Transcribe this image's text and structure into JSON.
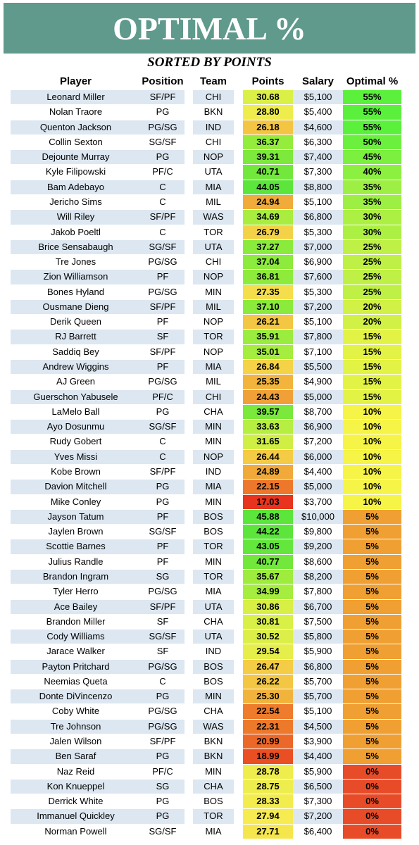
{
  "header": {
    "title": "OPTIMAL %",
    "subtitle": "SORTED BY POINTS"
  },
  "table": {
    "columns": [
      "Player",
      "Position",
      "Team",
      "Points",
      "Salary",
      "Optimal %"
    ],
    "rows": [
      [
        "Leonard Miller",
        "SF/PF",
        "CHI",
        "30.68",
        "$5,100",
        "55%"
      ],
      [
        "Nolan Traore",
        "PG",
        "BKN",
        "28.80",
        "$5,400",
        "55%"
      ],
      [
        "Quenton Jackson",
        "PG/SG",
        "IND",
        "26.18",
        "$4,600",
        "55%"
      ],
      [
        "Collin Sexton",
        "SG/SF",
        "CHI",
        "36.37",
        "$6,300",
        "50%"
      ],
      [
        "Dejounte Murray",
        "PG",
        "NOP",
        "39.31",
        "$7,400",
        "45%"
      ],
      [
        "Kyle Filipowski",
        "PF/C",
        "UTA",
        "40.71",
        "$7,300",
        "40%"
      ],
      [
        "Bam Adebayo",
        "C",
        "MIA",
        "44.05",
        "$8,800",
        "35%"
      ],
      [
        "Jericho Sims",
        "C",
        "MIL",
        "24.94",
        "$5,100",
        "35%"
      ],
      [
        "Will Riley",
        "SF/PF",
        "WAS",
        "34.69",
        "$6,800",
        "30%"
      ],
      [
        "Jakob Poeltl",
        "C",
        "TOR",
        "26.79",
        "$5,300",
        "30%"
      ],
      [
        "Brice Sensabaugh",
        "SG/SF",
        "UTA",
        "37.27",
        "$7,000",
        "25%"
      ],
      [
        "Tre Jones",
        "PG/SG",
        "CHI",
        "37.04",
        "$6,900",
        "25%"
      ],
      [
        "Zion Williamson",
        "PF",
        "NOP",
        "36.81",
        "$7,600",
        "25%"
      ],
      [
        "Bones Hyland",
        "PG/SG",
        "MIN",
        "27.35",
        "$5,300",
        "25%"
      ],
      [
        "Ousmane Dieng",
        "SF/PF",
        "MIL",
        "37.10",
        "$7,200",
        "20%"
      ],
      [
        "Derik Queen",
        "PF",
        "NOP",
        "26.21",
        "$5,100",
        "20%"
      ],
      [
        "RJ Barrett",
        "SF",
        "TOR",
        "35.91",
        "$7,800",
        "15%"
      ],
      [
        "Saddiq Bey",
        "SF/PF",
        "NOP",
        "35.01",
        "$7,100",
        "15%"
      ],
      [
        "Andrew Wiggins",
        "PF",
        "MIA",
        "26.84",
        "$5,500",
        "15%"
      ],
      [
        "AJ Green",
        "PG/SG",
        "MIL",
        "25.35",
        "$4,900",
        "15%"
      ],
      [
        "Guerschon Yabusele",
        "PF/C",
        "CHI",
        "24.43",
        "$5,000",
        "15%"
      ],
      [
        "LaMelo Ball",
        "PG",
        "CHA",
        "39.57",
        "$8,700",
        "10%"
      ],
      [
        "Ayo Dosunmu",
        "SG/SF",
        "MIN",
        "33.63",
        "$6,900",
        "10%"
      ],
      [
        "Rudy Gobert",
        "C",
        "MIN",
        "31.65",
        "$7,200",
        "10%"
      ],
      [
        "Yves Missi",
        "C",
        "NOP",
        "26.44",
        "$6,000",
        "10%"
      ],
      [
        "Kobe Brown",
        "SF/PF",
        "IND",
        "24.89",
        "$4,400",
        "10%"
      ],
      [
        "Davion Mitchell",
        "PG",
        "MIA",
        "22.15",
        "$5,000",
        "10%"
      ],
      [
        "Mike Conley",
        "PG",
        "MIN",
        "17.03",
        "$3,700",
        "10%"
      ],
      [
        "Jayson Tatum",
        "PF",
        "BOS",
        "45.88",
        "$10,000",
        "5%"
      ],
      [
        "Jaylen Brown",
        "SG/SF",
        "BOS",
        "44.22",
        "$9,800",
        "5%"
      ],
      [
        "Scottie Barnes",
        "PF",
        "TOR",
        "43.05",
        "$9,200",
        "5%"
      ],
      [
        "Julius Randle",
        "PF",
        "MIN",
        "40.77",
        "$8,600",
        "5%"
      ],
      [
        "Brandon Ingram",
        "SG",
        "TOR",
        "35.67",
        "$8,200",
        "5%"
      ],
      [
        "Tyler Herro",
        "PG/SG",
        "MIA",
        "34.99",
        "$7,800",
        "5%"
      ],
      [
        "Ace Bailey",
        "SF/PF",
        "UTA",
        "30.86",
        "$6,700",
        "5%"
      ],
      [
        "Brandon Miller",
        "SF",
        "CHA",
        "30.81",
        "$7,500",
        "5%"
      ],
      [
        "Cody Williams",
        "SG/SF",
        "UTA",
        "30.52",
        "$5,800",
        "5%"
      ],
      [
        "Jarace Walker",
        "SF",
        "IND",
        "29.54",
        "$5,900",
        "5%"
      ],
      [
        "Payton Pritchard",
        "PG/SG",
        "BOS",
        "26.47",
        "$6,800",
        "5%"
      ],
      [
        "Neemias Queta",
        "C",
        "BOS",
        "26.22",
        "$5,700",
        "5%"
      ],
      [
        "Donte DiVincenzo",
        "PG",
        "MIN",
        "25.30",
        "$5,700",
        "5%"
      ],
      [
        "Coby White",
        "PG/SG",
        "CHA",
        "22.54",
        "$5,100",
        "5%"
      ],
      [
        "Tre Johnson",
        "PG/SG",
        "WAS",
        "22.31",
        "$4,500",
        "5%"
      ],
      [
        "Jalen Wilson",
        "SF/PF",
        "BKN",
        "20.99",
        "$3,900",
        "5%"
      ],
      [
        "Ben Saraf",
        "PG",
        "BKN",
        "18.99",
        "$4,400",
        "5%"
      ],
      [
        "Naz Reid",
        "PF/C",
        "MIN",
        "28.78",
        "$5,900",
        "0%"
      ],
      [
        "Kon Knueppel",
        "SG",
        "CHA",
        "28.75",
        "$6,500",
        "0%"
      ],
      [
        "Derrick White",
        "PG",
        "BOS",
        "28.33",
        "$7,300",
        "0%"
      ],
      [
        "Immanuel Quickley",
        "PG",
        "TOR",
        "27.94",
        "$7,200",
        "0%"
      ],
      [
        "Norman Powell",
        "SG/SF",
        "MIA",
        "27.71",
        "$6,400",
        "0%"
      ]
    ]
  }
}
